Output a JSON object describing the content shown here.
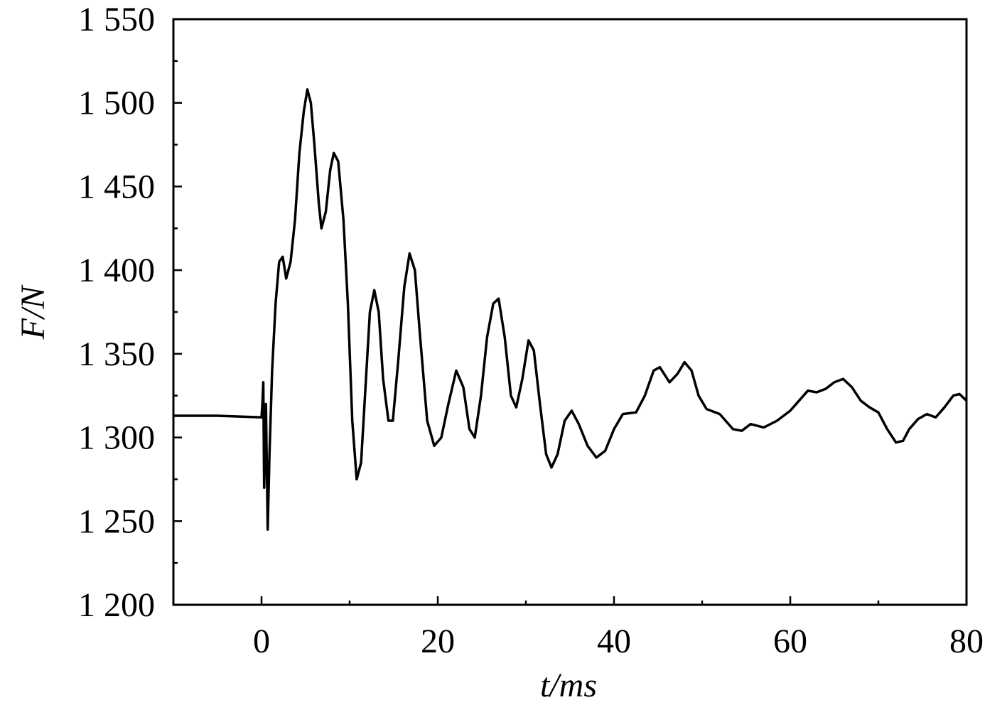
{
  "chart_data": {
    "type": "line",
    "xlabel": "t/ms",
    "ylabel": "F/N",
    "xlim": [
      -10,
      80
    ],
    "xticks": [
      0,
      20,
      40,
      60,
      80
    ],
    "ylim": [
      1200,
      1550
    ],
    "yticks": [
      {
        "value": 1200,
        "label": "1 200"
      },
      {
        "value": 1250,
        "label": "1 250"
      },
      {
        "value": 1300,
        "label": "1 300"
      },
      {
        "value": 1350,
        "label": "1 350"
      },
      {
        "value": 1400,
        "label": "1 400"
      },
      {
        "value": 1450,
        "label": "1 450"
      },
      {
        "value": 1500,
        "label": "1 500"
      },
      {
        "value": 1550,
        "label": "1 550"
      }
    ],
    "color": "#000000",
    "x": [
      -10,
      -5,
      0,
      0.1,
      0.2,
      0.3,
      0.5,
      0.7,
      0.9,
      1.2,
      1.6,
      2,
      2.4,
      2.8,
      3.3,
      3.8,
      4.3,
      4.8,
      5.2,
      5.6,
      6,
      6.5,
      6.8,
      7.3,
      7.8,
      8.2,
      8.7,
      9.3,
      9.8,
      10.3,
      10.8,
      11.3,
      11.8,
      12.3,
      12.8,
      13.3,
      13.8,
      14.4,
      14.9,
      15.5,
      16.2,
      16.8,
      17.4,
      18,
      18.8,
      19.6,
      20.4,
      21.2,
      22.1,
      22.9,
      23.6,
      24.2,
      24.9,
      25.6,
      26.3,
      26.9,
      27.6,
      28.3,
      28.9,
      29.6,
      30.3,
      30.9,
      31.6,
      32.3,
      32.9,
      33.6,
      34.4,
      35.2,
      36,
      37,
      38,
      39,
      40,
      41,
      42.5,
      43.5,
      44.5,
      45.2,
      46.3,
      47.2,
      48,
      48.8,
      49.6,
      50.5,
      52,
      53.5,
      54.5,
      55.5,
      57,
      58.5,
      60,
      61,
      62,
      63,
      64,
      65,
      66,
      67,
      68,
      69,
      70,
      71,
      72,
      72.8,
      73.5,
      74.5,
      75.5,
      76.5,
      77.5,
      78.5,
      79.2,
      80
    ],
    "values": [
      1313,
      1313,
      1312,
      1320,
      1333,
      1270,
      1320,
      1245,
      1290,
      1340,
      1380,
      1405,
      1408,
      1395,
      1405,
      1430,
      1470,
      1495,
      1508,
      1500,
      1475,
      1440,
      1425,
      1435,
      1460,
      1470,
      1465,
      1430,
      1380,
      1310,
      1275,
      1285,
      1330,
      1375,
      1388,
      1375,
      1335,
      1310,
      1310,
      1345,
      1390,
      1410,
      1400,
      1360,
      1310,
      1295,
      1300,
      1320,
      1340,
      1330,
      1305,
      1300,
      1325,
      1360,
      1380,
      1383,
      1360,
      1325,
      1318,
      1335,
      1358,
      1352,
      1320,
      1290,
      1282,
      1290,
      1310,
      1316,
      1308,
      1295,
      1288,
      1292,
      1305,
      1314,
      1315,
      1325,
      1340,
      1342,
      1333,
      1338,
      1345,
      1340,
      1325,
      1317,
      1314,
      1305,
      1304,
      1308,
      1306,
      1310,
      1316,
      1322,
      1328,
      1327,
      1329,
      1333,
      1335,
      1330,
      1322,
      1318,
      1315,
      1305,
      1297,
      1298,
      1305,
      1311,
      1314,
      1312,
      1318,
      1325,
      1326,
      1322
    ]
  }
}
